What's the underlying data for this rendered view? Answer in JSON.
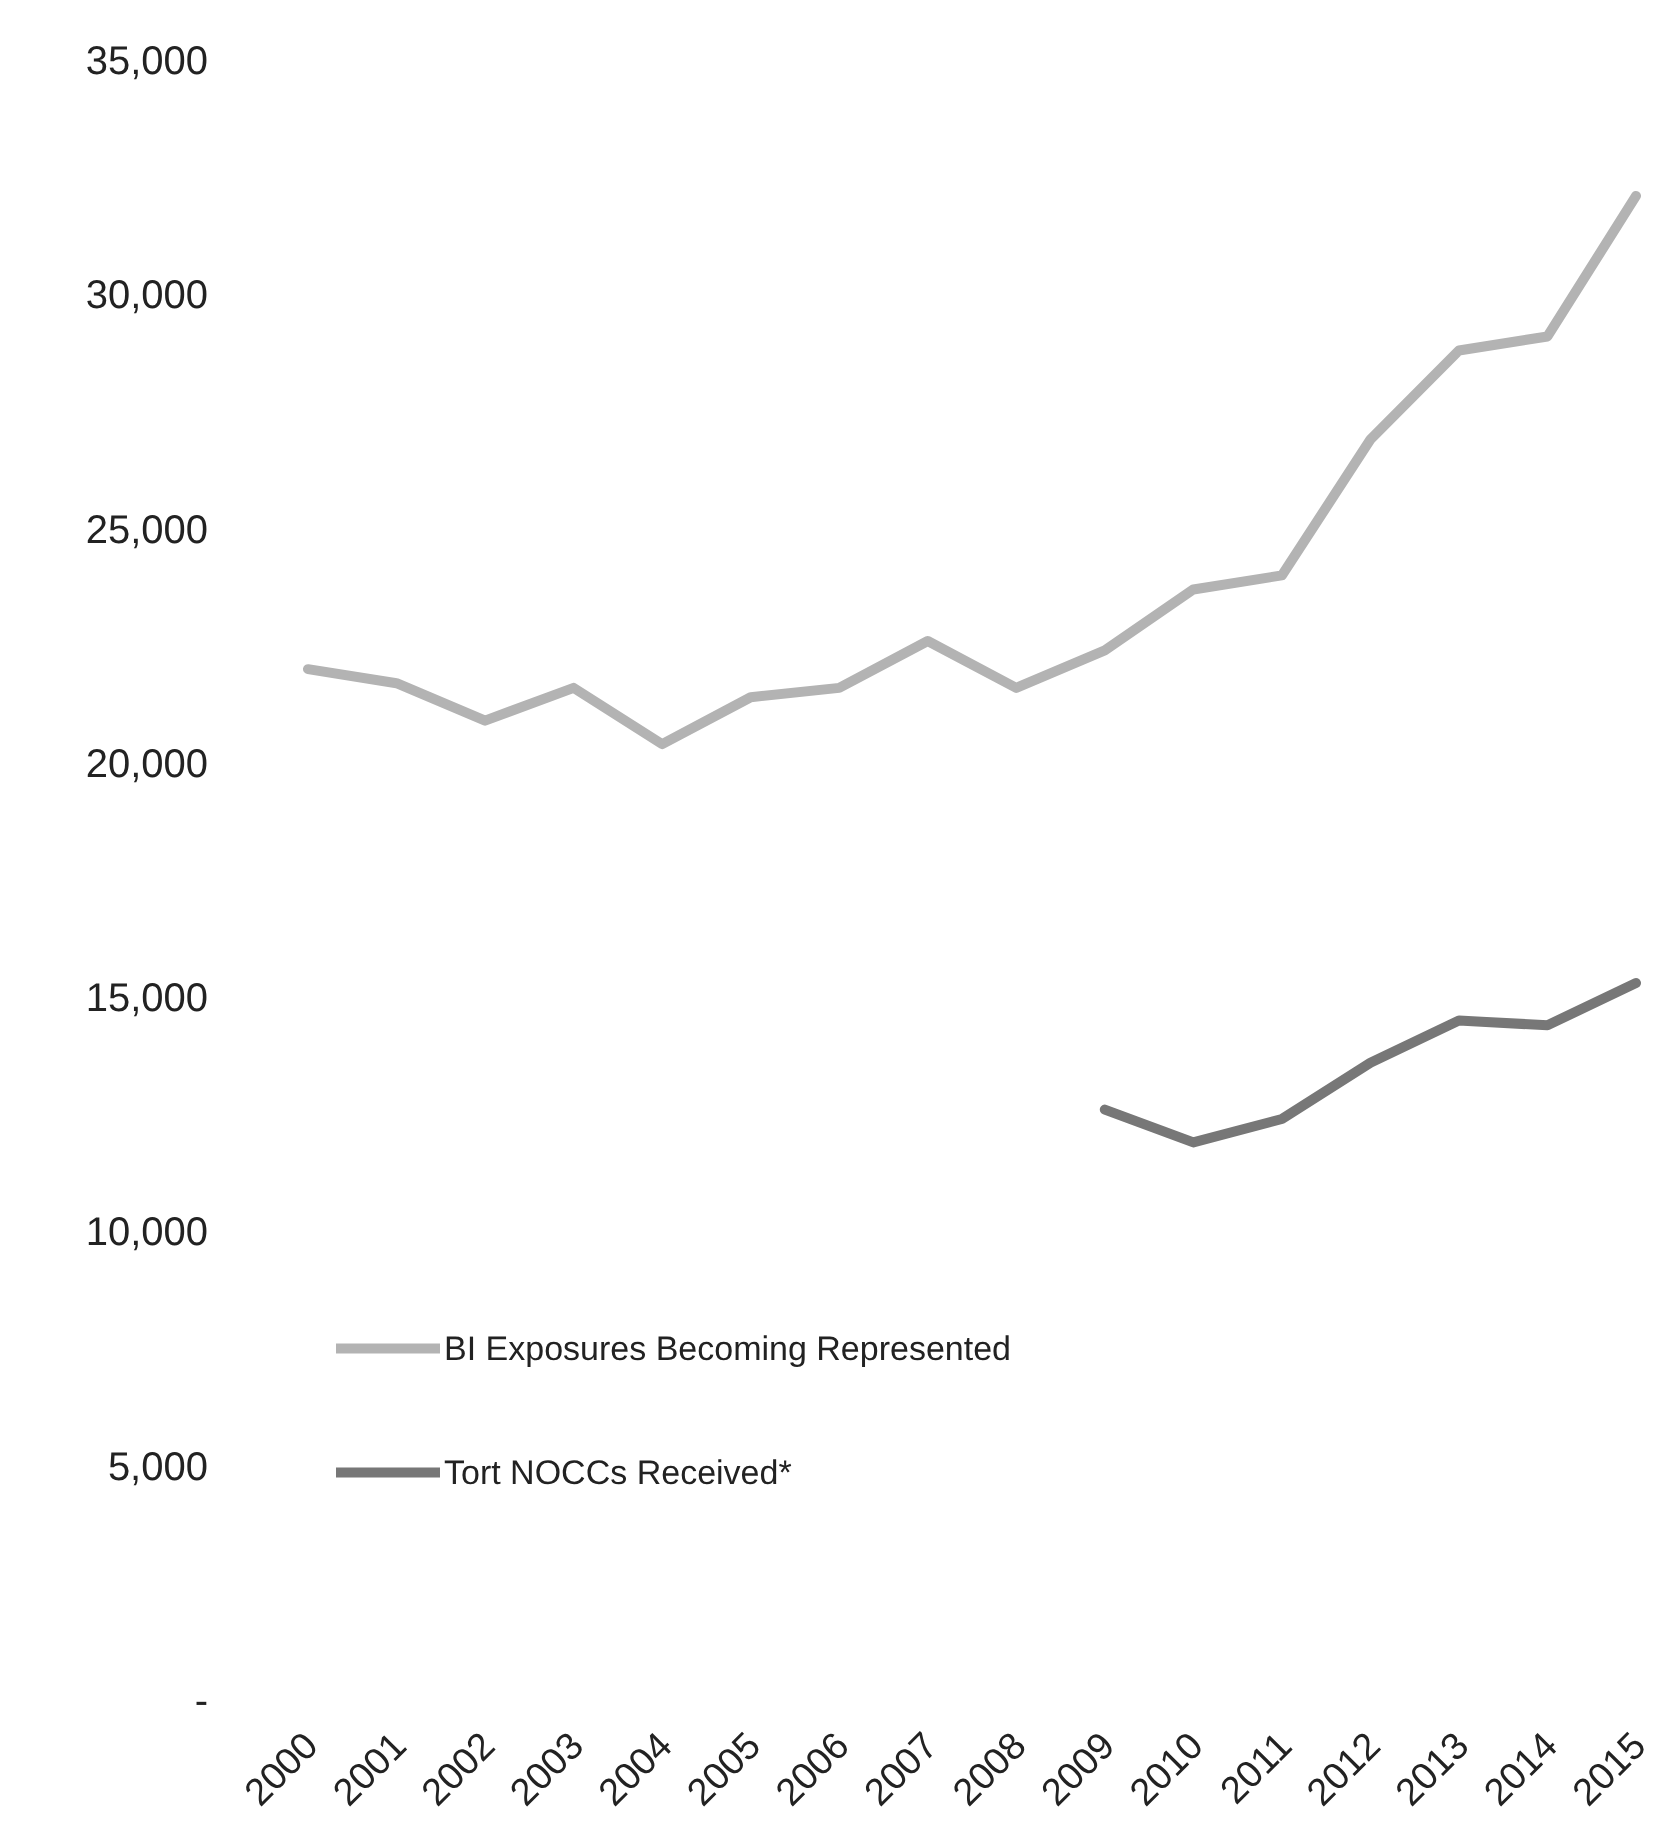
{
  "chart_data": {
    "type": "line",
    "categories": [
      "2000",
      "2001",
      "2002",
      "2003",
      "2004",
      "2005",
      "2006",
      "2007",
      "2008",
      "2009",
      "2010",
      "2011",
      "2012",
      "2013",
      "2014",
      "2015"
    ],
    "series": [
      {
        "name": "BI Exposures Becoming Represented",
        "color": "#b3b3b3",
        "values": [
          22000,
          21700,
          20900,
          21600,
          20400,
          21400,
          21600,
          22600,
          21600,
          22400,
          23700,
          24000,
          26900,
          28800,
          29100,
          32100
        ]
      },
      {
        "name": "Tort NOCCs Received*",
        "color": "#777777",
        "values": [
          null,
          null,
          null,
          null,
          null,
          null,
          null,
          null,
          null,
          12600,
          11900,
          12400,
          13600,
          14500,
          14400,
          15300
        ]
      }
    ],
    "ylim": [
      0,
      35000
    ],
    "yticks": [
      {
        "value": 0,
        "label": "-"
      },
      {
        "value": 5000,
        "label": "5,000"
      },
      {
        "value": 10000,
        "label": "10,000"
      },
      {
        "value": 15000,
        "label": "15,000"
      },
      {
        "value": 20000,
        "label": "20,000"
      },
      {
        "value": 25000,
        "label": "25,000"
      },
      {
        "value": 30000,
        "label": "30,000"
      },
      {
        "value": 35000,
        "label": "35,000"
      }
    ],
    "legend": "bottom left",
    "marker": "none",
    "line_style": "solid"
  }
}
